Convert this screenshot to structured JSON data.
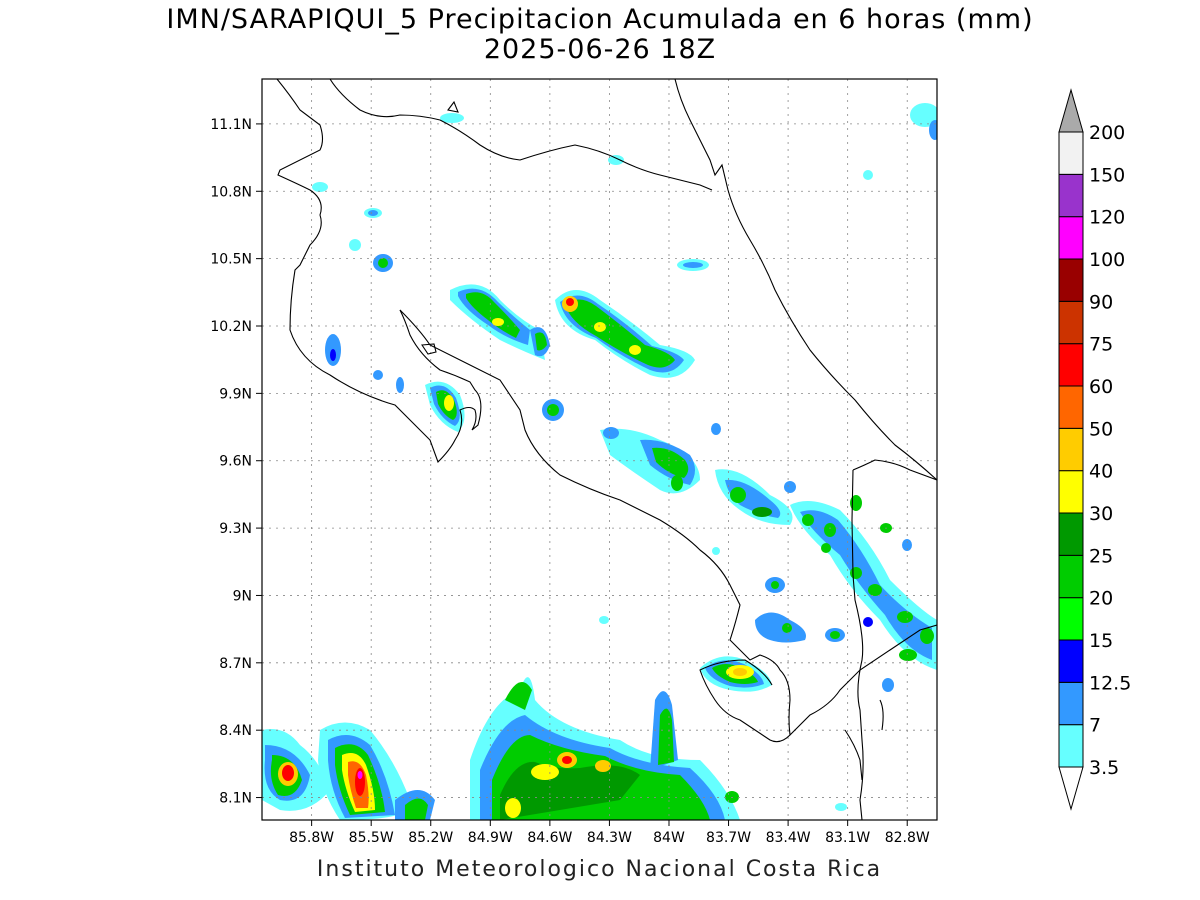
{
  "title_line1": "IMN/SARAPIQUI_5 Precipitacion Acumulada en 6 horas (mm)",
  "title_line2": "2025-06-26 18Z",
  "footer": "Instituto Meteorologico Nacional Costa Rica",
  "map": {
    "lon_range": [
      -86.05,
      -82.65
    ],
    "lat_range": [
      8.0,
      11.3
    ],
    "lat_ticks": [
      {
        "value": 11.1,
        "label": "11.1N"
      },
      {
        "value": 10.8,
        "label": "10.8N"
      },
      {
        "value": 10.5,
        "label": "10.5N"
      },
      {
        "value": 10.2,
        "label": "10.2N"
      },
      {
        "value": 9.9,
        "label": "9.9N"
      },
      {
        "value": 9.6,
        "label": "9.6N"
      },
      {
        "value": 9.3,
        "label": "9.3N"
      },
      {
        "value": 9.0,
        "label": "9N"
      },
      {
        "value": 8.7,
        "label": "8.7N"
      },
      {
        "value": 8.4,
        "label": "8.4N"
      },
      {
        "value": 8.1,
        "label": "8.1N"
      }
    ],
    "lon_ticks": [
      {
        "value": -85.8,
        "label": "85.8W"
      },
      {
        "value": -85.5,
        "label": "85.5W"
      },
      {
        "value": -85.2,
        "label": "85.2W"
      },
      {
        "value": -84.9,
        "label": "84.9W"
      },
      {
        "value": -84.6,
        "label": "84.6W"
      },
      {
        "value": -84.3,
        "label": "84.3W"
      },
      {
        "value": -84.0,
        "label": "84W"
      },
      {
        "value": -83.7,
        "label": "83.7W"
      },
      {
        "value": -83.4,
        "label": "83.4W"
      },
      {
        "value": -83.1,
        "label": "83.1W"
      },
      {
        "value": -82.8,
        "label": "82.8W"
      }
    ],
    "grid": true
  },
  "colorbar": {
    "levels": [
      {
        "label": "3.5",
        "color": "#66ffff"
      },
      {
        "label": "7",
        "color": "#3399ff"
      },
      {
        "label": "12.5",
        "color": "#0000ff"
      },
      {
        "label": "15",
        "color": "#00ff00"
      },
      {
        "label": "20",
        "color": "#00cc00"
      },
      {
        "label": "25",
        "color": "#009900"
      },
      {
        "label": "30",
        "color": "#ffff00"
      },
      {
        "label": "40",
        "color": "#ffcc00"
      },
      {
        "label": "50",
        "color": "#ff6600"
      },
      {
        "label": "60",
        "color": "#ff0000"
      },
      {
        "label": "75",
        "color": "#cc3300"
      },
      {
        "label": "90",
        "color": "#990000"
      },
      {
        "label": "100",
        "color": "#ff00ff"
      },
      {
        "label": "120",
        "color": "#9933cc"
      },
      {
        "label": "150",
        "color": "#f2f2f2"
      },
      {
        "label": "200",
        "color": "#aaaaaa"
      }
    ]
  },
  "precip_cells": [
    {
      "lon": -85.82,
      "lat": 8.22,
      "mm": 60
    },
    {
      "lon": -85.78,
      "lat": 8.18,
      "mm": 25
    },
    {
      "lon": -85.48,
      "lat": 8.2,
      "mm": 120
    },
    {
      "lon": -85.5,
      "lat": 8.3,
      "mm": 60
    },
    {
      "lon": -85.46,
      "lat": 8.12,
      "mm": 75
    },
    {
      "lon": -85.2,
      "lat": 8.08,
      "mm": 20
    },
    {
      "lon": -84.72,
      "lat": 8.05,
      "mm": 30
    },
    {
      "lon": -84.62,
      "lat": 8.22,
      "mm": 30
    },
    {
      "lon": -84.42,
      "lat": 8.27,
      "mm": 60
    },
    {
      "lon": -84.22,
      "lat": 8.25,
      "mm": 40
    },
    {
      "lon": -84.52,
      "lat": 8.23,
      "mm": 40
    },
    {
      "lon": -83.88,
      "lat": 8.15,
      "mm": 25
    },
    {
      "lon": -84.7,
      "lat": 8.58,
      "mm": 20
    },
    {
      "lon": -83.6,
      "lat": 8.66,
      "mm": 40
    },
    {
      "lon": -83.5,
      "lat": 8.62,
      "mm": 25
    },
    {
      "lon": -84.3,
      "lat": 10.3,
      "mm": 60
    },
    {
      "lon": -84.2,
      "lat": 10.18,
      "mm": 30
    },
    {
      "lon": -84.77,
      "lat": 10.3,
      "mm": 25
    },
    {
      "lon": -84.6,
      "lat": 10.2,
      "mm": 20
    },
    {
      "lon": -84.07,
      "lat": 10.14,
      "mm": 25
    },
    {
      "lon": -83.93,
      "lat": 10.05,
      "mm": 20
    },
    {
      "lon": -85.35,
      "lat": 9.88,
      "mm": 40
    },
    {
      "lon": -85.32,
      "lat": 10.47,
      "mm": 25
    },
    {
      "lon": -84.6,
      "lat": 9.82,
      "mm": 20
    },
    {
      "lon": -83.95,
      "lat": 9.6,
      "mm": 25
    },
    {
      "lon": -83.52,
      "lat": 9.42,
      "mm": 20
    },
    {
      "lon": -83.4,
      "lat": 9.37,
      "mm": 25
    },
    {
      "lon": -82.95,
      "lat": 9.42,
      "mm": 20
    },
    {
      "lon": -82.75,
      "lat": 8.88,
      "mm": 20
    },
    {
      "lon": -82.68,
      "lat": 8.8,
      "mm": 25
    },
    {
      "lon": -83.4,
      "lat": 8.82,
      "mm": 15
    }
  ]
}
